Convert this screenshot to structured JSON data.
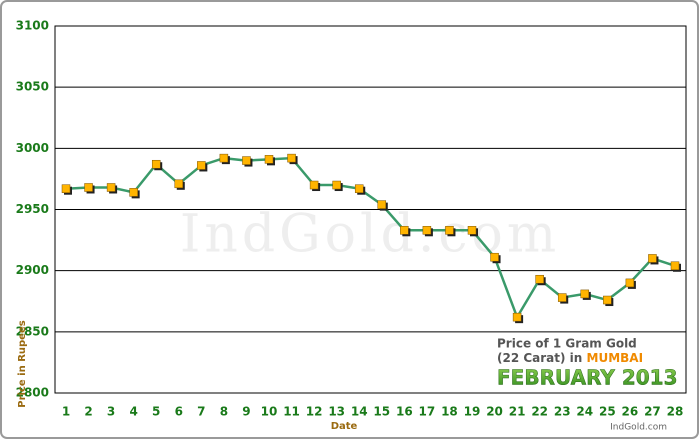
{
  "chart_data": {
    "type": "line",
    "watermark": "IndGold.com",
    "y_label": "Price in Rupees",
    "x_label": "Date",
    "caption_line1": "Price of 1 Gram Gold",
    "caption_line2_prefix": "(22 Carat) in",
    "caption_city": "MUMBAI",
    "caption_period": "FEBRUARY 2013",
    "source": "IndGold.com",
    "categories": [
      "1",
      "2",
      "3",
      "4",
      "5",
      "6",
      "7",
      "8",
      "9",
      "10",
      "11",
      "12",
      "13",
      "14",
      "15",
      "16",
      "17",
      "18",
      "19",
      "20",
      "21",
      "22",
      "23",
      "24",
      "25",
      "26",
      "27",
      "28"
    ],
    "series": [
      {
        "color": "#3a9a6a",
        "marker_color": "#ffb400",
        "values": [
          2967,
          2968,
          2968,
          2964,
          2987,
          2971,
          2986,
          2992,
          2990,
          2991,
          2992,
          2970,
          2970,
          2967,
          2954,
          2933,
          2933,
          2933,
          2933,
          2911,
          2862,
          2893,
          2878,
          2881,
          2876,
          2890,
          2910,
          2904
        ]
      }
    ],
    "ylim": [
      2800,
      3100
    ],
    "yticks": [
      2800,
      2850,
      2900,
      2950,
      3000,
      3050,
      3100
    ],
    "grid": true
  }
}
